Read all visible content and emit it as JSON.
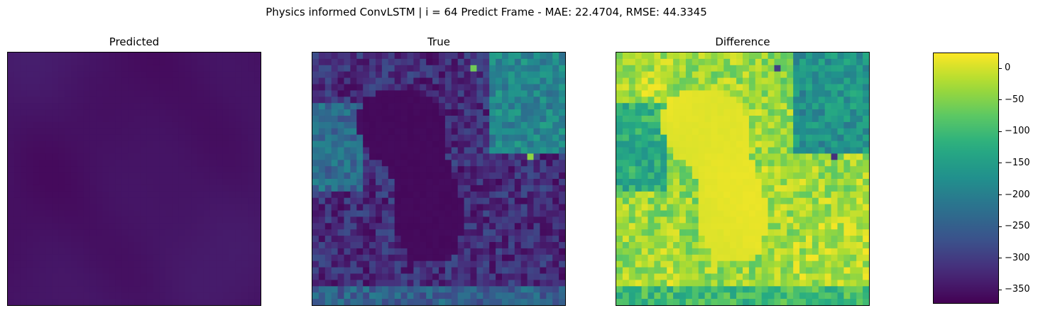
{
  "chart_data": [
    {
      "type": "heatmap",
      "title": "Physics informed ConvLSTM | i = 64 Predict Frame - MAE: 22.4704, RMSE: 44.3345",
      "panels": [
        {
          "title": "Predicted",
          "grid_size": 40,
          "value_range": [
            -365,
            -330
          ],
          "pattern": "smooth"
        },
        {
          "title": "True",
          "grid_size": 40,
          "value_range": [
            -365,
            -40
          ],
          "pattern": "rough"
        },
        {
          "title": "Difference",
          "grid_size": 40,
          "value_range": [
            -360,
            25
          ],
          "pattern": "difference"
        }
      ],
      "colorbar": {
        "colormap": "viridis",
        "range": [
          -370,
          25
        ],
        "ticks": [
          0,
          -50,
          -100,
          -150,
          -200,
          -250,
          -300,
          -350
        ],
        "tick_labels": [
          "0",
          "−50",
          "−100",
          "−150",
          "−200",
          "−250",
          "−300",
          "−350"
        ]
      },
      "axes": {
        "xticks": false,
        "yticks": false
      }
    }
  ]
}
